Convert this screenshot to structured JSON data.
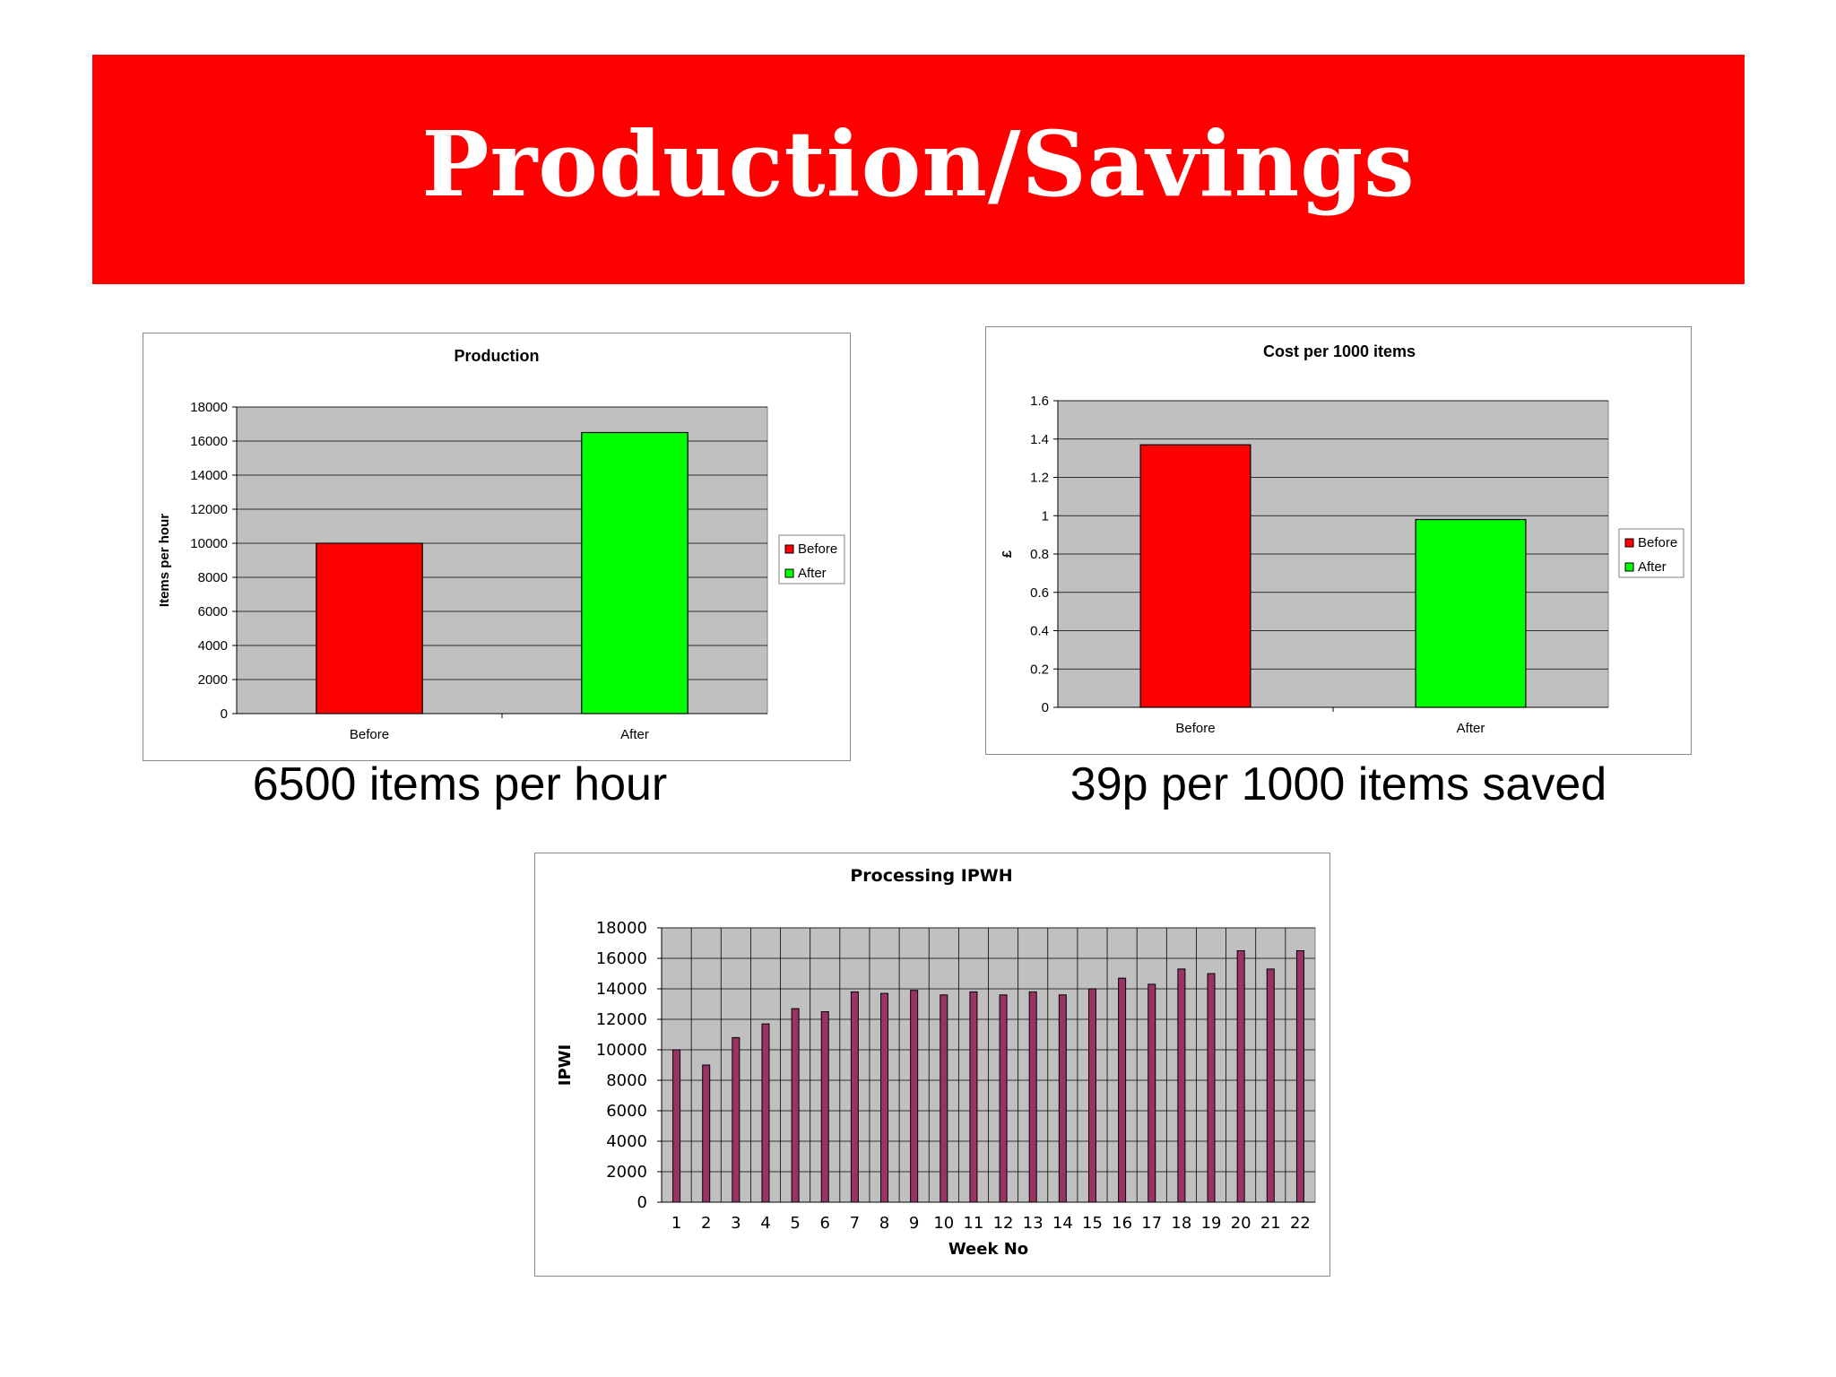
{
  "slide": {
    "title": "Production/Savings",
    "caption_left": "6500 items per hour",
    "caption_right": "39p per 1000 items saved"
  },
  "colors": {
    "banner": "#ff0000",
    "before": "#ff0000",
    "after": "#00ff00",
    "weekly_bar": "#993366",
    "plot_area": "#c0c0c0"
  },
  "chart_data": [
    {
      "type": "bar",
      "title": "Production",
      "ylabel": "Items per hour",
      "xlabel": "",
      "categories": [
        "Before",
        "After"
      ],
      "values": [
        10000,
        16500
      ],
      "ylim": [
        0,
        18000
      ],
      "yticks": [
        0,
        2000,
        4000,
        6000,
        8000,
        10000,
        12000,
        14000,
        16000,
        18000
      ],
      "grid": true,
      "legend": {
        "position": "right",
        "entries": [
          "Before",
          "After"
        ]
      }
    },
    {
      "type": "bar",
      "title": "Cost per 1000 items",
      "ylabel": "£",
      "xlabel": "",
      "categories": [
        "Before",
        "After"
      ],
      "values": [
        1.37,
        0.98
      ],
      "ylim": [
        0,
        1.6
      ],
      "yticks": [
        0,
        0.2,
        0.4,
        0.6,
        0.8,
        1,
        1.2,
        1.4,
        1.6
      ],
      "grid": true,
      "legend": {
        "position": "right",
        "entries": [
          "Before",
          "After"
        ]
      }
    },
    {
      "type": "bar",
      "title": "Processing IPWH",
      "ylabel": "IPWI",
      "xlabel": "Week No",
      "categories": [
        "1",
        "2",
        "3",
        "4",
        "5",
        "6",
        "7",
        "8",
        "9",
        "10",
        "11",
        "12",
        "13",
        "14",
        "15",
        "16",
        "17",
        "18",
        "19",
        "20",
        "21",
        "22"
      ],
      "values": [
        10000,
        9000,
        10800,
        11700,
        12700,
        12500,
        13800,
        13700,
        13900,
        13600,
        13800,
        13600,
        13800,
        13600,
        14000,
        14700,
        14300,
        15300,
        15000,
        16500,
        15300,
        16500
      ],
      "ylim": [
        0,
        18000
      ],
      "yticks": [
        0,
        2000,
        4000,
        6000,
        8000,
        10000,
        12000,
        14000,
        16000,
        18000
      ],
      "grid": true,
      "legend": {
        "position": "none",
        "entries": []
      }
    }
  ]
}
